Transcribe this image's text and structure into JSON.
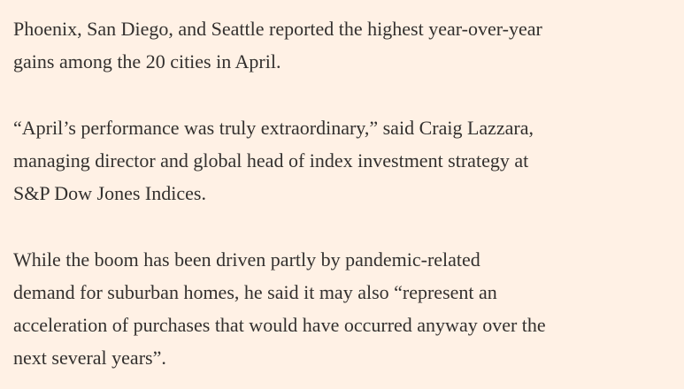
{
  "article": {
    "paragraphs": [
      [
        "Phoenix, San Diego, and Seattle reported the highest year-over-year",
        "gains among the 20 cities in April."
      ],
      [
        "“April’s performance was truly extraordinary,” said Craig Lazzara,",
        "managing director and global head of index investment strategy at",
        "S&P Dow Jones Indices."
      ],
      [
        "While the boom has been driven partly by pandemic-related",
        "demand for suburban homes, he said it may also “represent an",
        "acceleration of purchases that would have occurred anyway over the",
        "next several years”."
      ]
    ]
  }
}
